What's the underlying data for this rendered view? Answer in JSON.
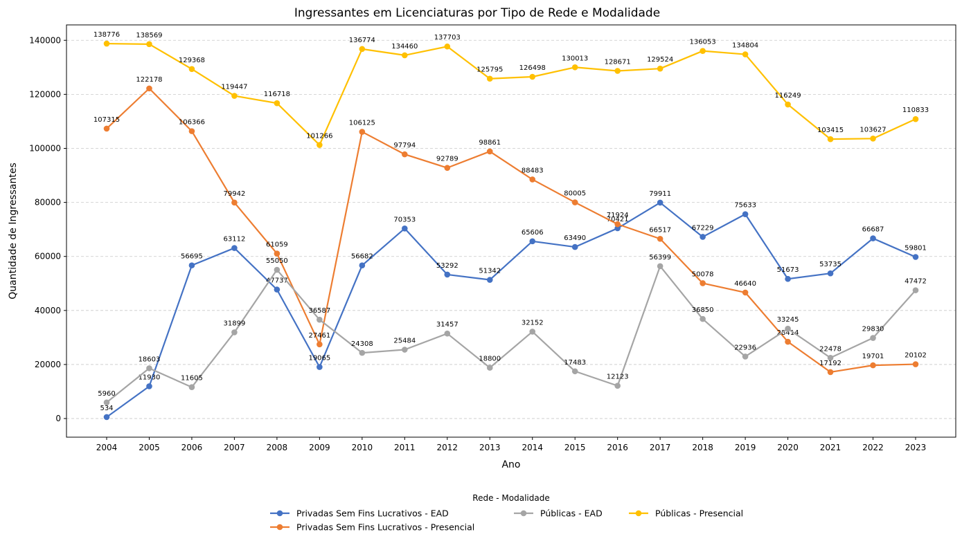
{
  "chart_data": {
    "type": "line",
    "title": "Ingressantes em Licenciaturas por Tipo de Rede e Modalidade",
    "xlabel": "Ano",
    "ylabel": "Quantidade de Ingressantes",
    "x": [
      2004,
      2005,
      2006,
      2007,
      2008,
      2009,
      2010,
      2011,
      2012,
      2013,
      2014,
      2015,
      2016,
      2017,
      2018,
      2019,
      2020,
      2021,
      2022,
      2023
    ],
    "y_ticks": [
      0,
      20000,
      40000,
      60000,
      80000,
      100000,
      120000,
      140000
    ],
    "ylim": [
      -6900,
      145700
    ],
    "grid": "y-dashed",
    "legend": {
      "title": "Rede - Modalidade",
      "placement": "bottom-center"
    },
    "series": [
      {
        "name": "Privadas Sem Fins Lucrativos - EAD",
        "color": "#4472c4",
        "values": [
          534,
          11930,
          56695,
          63112,
          47737,
          19065,
          56682,
          70353,
          53292,
          51342,
          65606,
          63490,
          70421,
          79911,
          67229,
          75633,
          51673,
          53735,
          66687,
          59801
        ]
      },
      {
        "name": "Privadas Sem Fins Lucrativos - Presencial",
        "color": "#ed7d31",
        "values": [
          107315,
          122178,
          106366,
          79942,
          61059,
          27461,
          106125,
          97794,
          92789,
          98861,
          88483,
          80005,
          71924,
          66517,
          50078,
          46640,
          28414,
          17192,
          19701,
          20102
        ]
      },
      {
        "name": "Públicas - EAD",
        "color": "#a5a5a5",
        "values": [
          5960,
          18603,
          11605,
          31899,
          55050,
          36587,
          24308,
          25484,
          31457,
          18800,
          32152,
          17483,
          12123,
          56399,
          36850,
          22936,
          33245,
          22478,
          29830,
          47472
        ]
      },
      {
        "name": "Públicas - Presencial",
        "color": "#ffc000",
        "values": [
          138776,
          138569,
          129368,
          119447,
          116718,
          101266,
          136774,
          134460,
          137703,
          125795,
          126498,
          130013,
          128671,
          129524,
          136053,
          134804,
          116249,
          103415,
          103627,
          110833
        ]
      }
    ]
  }
}
